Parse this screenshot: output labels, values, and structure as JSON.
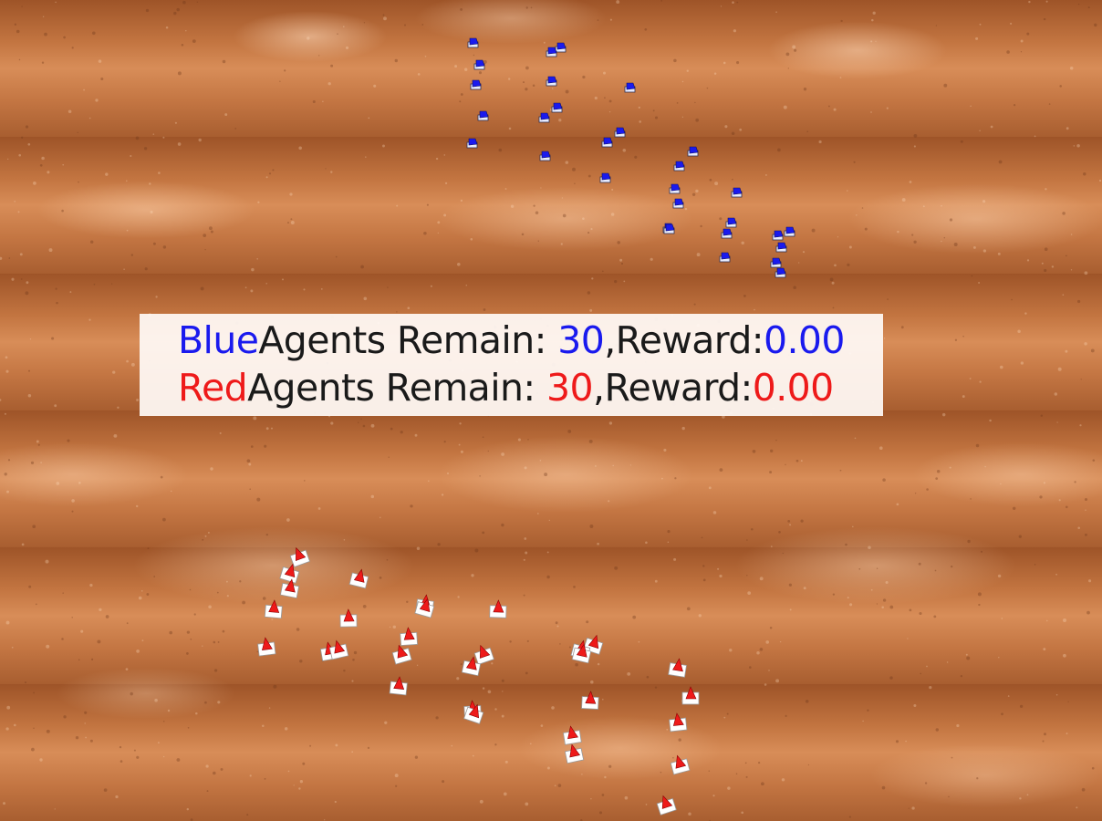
{
  "hud": {
    "blue": {
      "team_name": "Blue",
      "label": "Agents Remain: ",
      "remain": "30",
      "reward_label": ",Reward:",
      "reward": "0.00"
    },
    "red": {
      "team_name": "Red",
      "label": "Agents Remain: ",
      "remain": "30",
      "reward_label": ",Reward:",
      "reward": "0.00"
    }
  },
  "colors": {
    "blue_team": "#1a1aee",
    "red_team": "#ee1a1a",
    "terrain": "#b8683a"
  }
}
